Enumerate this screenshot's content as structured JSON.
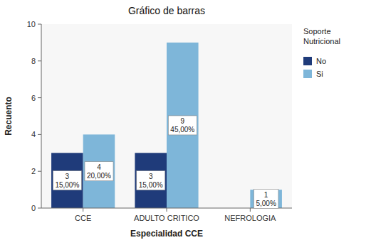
{
  "chart_data": {
    "type": "bar",
    "title": "Gráfico de barras",
    "x_label": "Especialidad CCE",
    "y_label": "Recuento",
    "categories": [
      "CCE",
      "ADULTO CRITICO",
      "NEFROLOGIA"
    ],
    "series": [
      {
        "name": "No",
        "color": "#1F3B7A",
        "values": [
          3,
          3,
          0
        ],
        "value_labels": [
          "3\n15,00%",
          "3\n15,00%",
          null
        ]
      },
      {
        "name": "Si",
        "color": "#7EB6D9",
        "values": [
          4,
          9,
          1
        ],
        "value_labels": [
          "4\n20,00%",
          "9\n45,00%",
          "1\n5,00%"
        ]
      }
    ],
    "ylim": [
      0,
      10
    ],
    "yticks": [
      0,
      2,
      4,
      6,
      8,
      10
    ],
    "grid": false,
    "legend": "right",
    "legend_title": "Soporte\nNutricional",
    "data_labels": true
  }
}
